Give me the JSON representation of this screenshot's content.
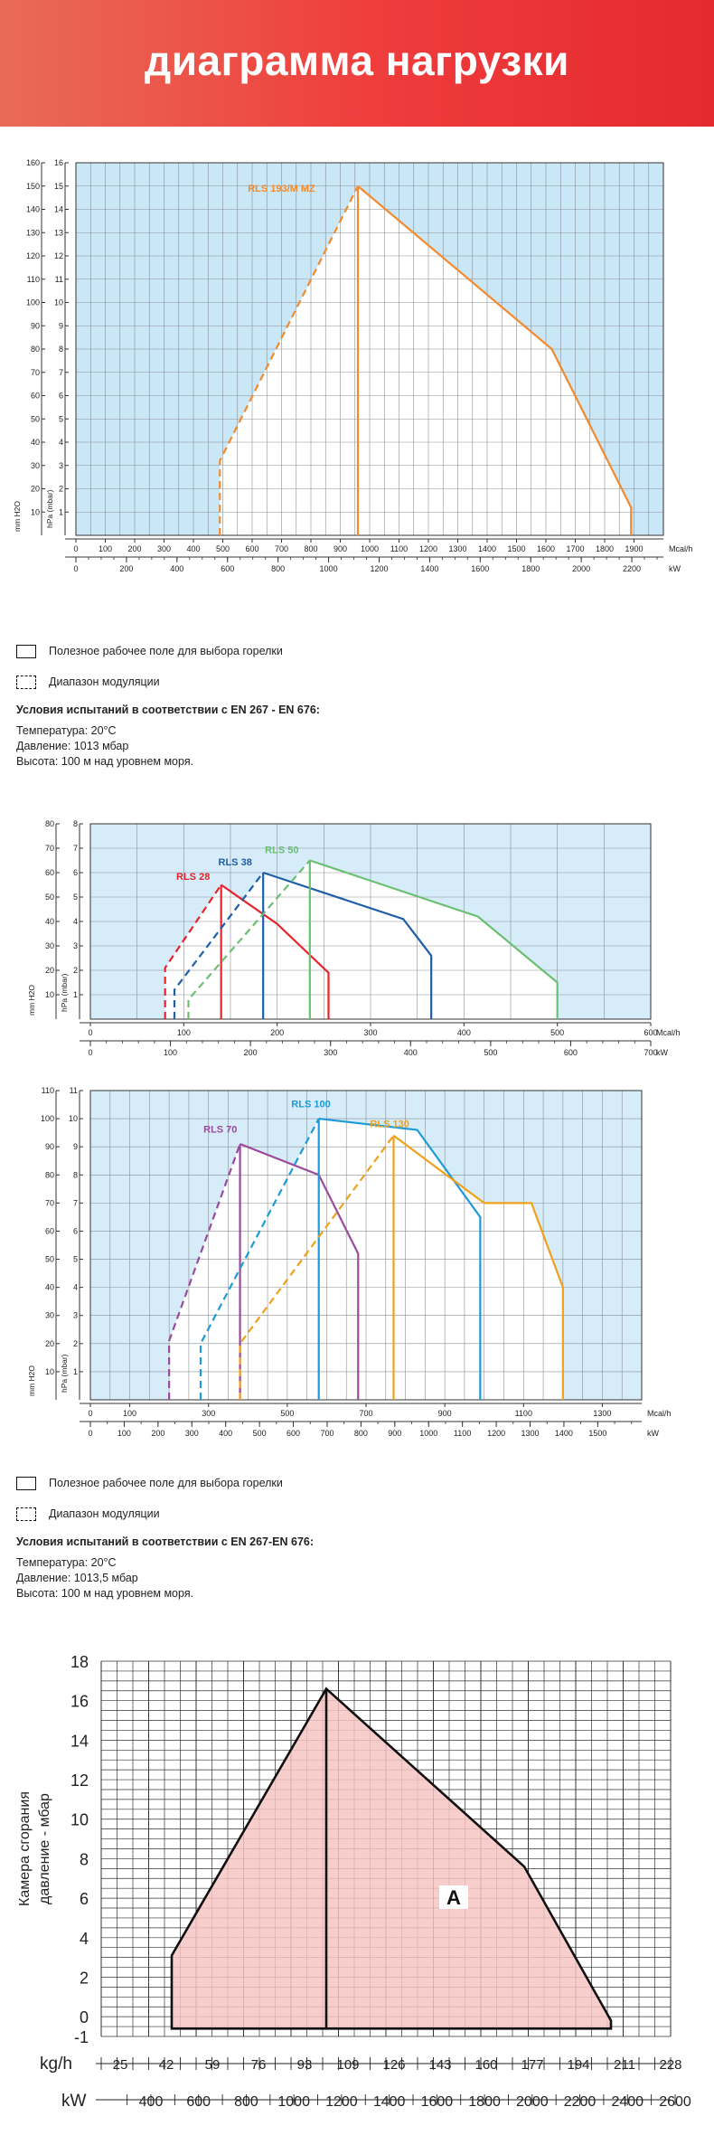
{
  "header": {
    "title": "диаграмма нагрузки"
  },
  "legend1": {
    "field_label": "Полезное рабочее поле для выбора горелки",
    "modulation_label": "Диапазон модуляции",
    "conditions_title": "Условия испытаний в соответствии с EN 267 - EN 676:",
    "temperature": "Температура: 20°С",
    "pressure": "Давление: 1013 мбар",
    "altitude": "Высота: 100 м над уровнем моря."
  },
  "legend2": {
    "field_label": "Полезное рабочее поле для выбора горелки",
    "modulation_label": "Диапазон модуляции",
    "conditions_title": "Условия испытаний в соответствии с EN 267-EN 676:",
    "temperature": "Температура: 20°С",
    "pressure": "Давление: 1013,5 мбар",
    "altitude": "Высота: 100 м над уровнем моря."
  },
  "chart_data": [
    {
      "type": "area",
      "x_units": [
        "Mcal/h",
        "kW"
      ],
      "y_units": [
        "mm H2O",
        "hPa (mbar)"
      ],
      "y_label_mm": "mm H2O",
      "y_label_hpa": "hPa (mbar)",
      "x_label_mcal": "Mcal/h",
      "x_label_kw": "kW",
      "xlim": [
        0,
        2000
      ],
      "ylim": [
        0,
        16
      ],
      "x_ticks": [
        0,
        100,
        200,
        300,
        400,
        500,
        600,
        700,
        800,
        900,
        1000,
        1100,
        1200,
        1300,
        1400,
        1500,
        1600,
        1700,
        1800,
        1900
      ],
      "kw_ticks": [
        0,
        200,
        400,
        600,
        800,
        1000,
        1200,
        1400,
        1600,
        1800,
        2000,
        2200
      ],
      "y_ticks": [
        1,
        2,
        3,
        4,
        5,
        6,
        7,
        8,
        9,
        10,
        11,
        12,
        13,
        14,
        15,
        16
      ],
      "mm_ticks": [
        10,
        20,
        30,
        40,
        50,
        60,
        70,
        80,
        90,
        100,
        110,
        120,
        130,
        140,
        150,
        160
      ],
      "bg_color": "#c9e7f6",
      "series": [
        {
          "name": "RLS 193/M MZ",
          "color": "#f28a2e",
          "min_x": 490,
          "min_y": 3.2,
          "peak_x": 960,
          "peak_y": 15,
          "inner_x": 960,
          "outline": [
            [
              960,
              15
            ],
            [
              1620,
              8
            ],
            [
              1890,
              1.2
            ],
            [
              1890,
              0
            ]
          ]
        }
      ]
    },
    {
      "type": "area",
      "x_units": [
        "Mcal/h",
        "kW"
      ],
      "y_units": [
        "mm H2O",
        "hPa (mbar)"
      ],
      "y_label_mm": "mm H2O",
      "y_label_hpa": "hPa (mbar)",
      "x_label_mcal": "Mcal/h",
      "x_label_kw": "kW",
      "xlim": [
        0,
        600
      ],
      "ylim": [
        0,
        8
      ],
      "x_ticks": [
        0,
        100,
        200,
        300,
        400,
        500,
        600
      ],
      "kw_ticks": [
        0,
        100,
        200,
        300,
        400,
        500,
        600,
        700
      ],
      "y_ticks": [
        1,
        2,
        3,
        4,
        5,
        6,
        7,
        8
      ],
      "mm_ticks": [
        10,
        20,
        30,
        40,
        50,
        60,
        70,
        80
      ],
      "bg_color": "#d6ecf9",
      "series": [
        {
          "name": "RLS 28",
          "color": "#e6242b",
          "min_x": 80,
          "min_y": 2.1,
          "peak_x": 140,
          "peak_y": 5.5,
          "inner_x": 140,
          "label_x": 110,
          "label_y": 5.7,
          "outline": [
            [
              140,
              5.5
            ],
            [
              200,
              3.9
            ],
            [
              255,
              1.9
            ],
            [
              255,
              0
            ]
          ]
        },
        {
          "name": "RLS 38",
          "color": "#1f5fa8",
          "min_x": 90,
          "min_y": 1.2,
          "peak_x": 185,
          "peak_y": 6.0,
          "inner_x": 185,
          "label_x": 155,
          "label_y": 6.3,
          "outline": [
            [
              185,
              6.0
            ],
            [
              335,
              4.1
            ],
            [
              365,
              2.6
            ],
            [
              365,
              0
            ]
          ]
        },
        {
          "name": "RLS 50",
          "color": "#6bbf72",
          "min_x": 105,
          "min_y": 0.8,
          "peak_x": 235,
          "peak_y": 6.5,
          "inner_x": 235,
          "label_x": 205,
          "label_y": 6.8,
          "outline": [
            [
              235,
              6.5
            ],
            [
              415,
              4.2
            ],
            [
              500,
              1.5
            ],
            [
              500,
              0
            ]
          ]
        }
      ]
    },
    {
      "type": "area",
      "x_units": [
        "Mcal/h",
        "kW"
      ],
      "y_units": [
        "mm H2O",
        "hPa (mbar)"
      ],
      "y_label_mm": "mm H2O",
      "y_label_hpa": "hPa (mbar)",
      "x_label_mcal": "Mcal/h",
      "x_label_kw": "kW",
      "xlim": [
        0,
        1400
      ],
      "ylim": [
        0,
        11
      ],
      "x_ticks": [
        0,
        100,
        300,
        500,
        700,
        900,
        1100,
        1300
      ],
      "kw_ticks": [
        0,
        100,
        200,
        300,
        400,
        500,
        600,
        700,
        800,
        900,
        1000,
        1100,
        1200,
        1300,
        1400,
        1500
      ],
      "y_ticks": [
        1,
        2,
        3,
        4,
        5,
        6,
        7,
        8,
        9,
        10,
        11
      ],
      "mm_ticks": [
        10,
        20,
        30,
        40,
        50,
        60,
        70,
        80,
        90,
        100,
        110
      ],
      "bg_color": "#d6ecf9",
      "series": [
        {
          "name": "RLS 70",
          "color": "#9b4a9c",
          "min_x": 200,
          "min_y": 2.1,
          "peak_x": 380,
          "peak_y": 9.1,
          "inner_x": 380,
          "label_x": 330,
          "label_y": 9.5,
          "outline": [
            [
              380,
              9.1
            ],
            [
              580,
              8.0
            ],
            [
              680,
              5.2
            ],
            [
              680,
              0
            ]
          ]
        },
        {
          "name": "RLS 100",
          "color": "#1d9bd7",
          "min_x": 280,
          "min_y": 2.0,
          "peak_x": 580,
          "peak_y": 10.0,
          "inner_x": 580,
          "label_x": 560,
          "label_y": 10.4,
          "outline": [
            [
              580,
              10.0
            ],
            [
              830,
              9.6
            ],
            [
              990,
              6.5
            ],
            [
              990,
              0
            ]
          ]
        },
        {
          "name": "RLS 130",
          "color": "#f0a11c",
          "min_x": 380,
          "min_y": 2.0,
          "peak_x": 770,
          "peak_y": 9.4,
          "inner_x": 770,
          "label_x": 760,
          "label_y": 9.7,
          "outline": [
            [
              770,
              9.4
            ],
            [
              1000,
              7.0
            ],
            [
              1120,
              7.0
            ],
            [
              1200,
              4.0
            ],
            [
              1200,
              0
            ]
          ]
        }
      ]
    },
    {
      "type": "area",
      "ylabel_line1": "Камера сгорания",
      "ylabel_line2": "давление - мбар",
      "x_label_kgh": "kg/h",
      "x_label_kw": "kW",
      "xlim": [
        18,
        228
      ],
      "ylim": [
        -1,
        18
      ],
      "y_ticks": [
        -1,
        0,
        2,
        4,
        6,
        8,
        10,
        12,
        14,
        16,
        18
      ],
      "kgh_ticks": [
        25,
        42,
        59,
        76,
        93,
        109,
        126,
        143,
        160,
        177,
        194,
        211,
        228
      ],
      "kw_ticks": [
        400,
        600,
        800,
        1000,
        1200,
        1400,
        1600,
        1800,
        2000,
        2200,
        2400,
        2600
      ],
      "fill_color": "#f6c5c3",
      "area_label": "A",
      "outline": [
        [
          44,
          -0.6
        ],
        [
          44,
          3.1
        ],
        [
          101,
          16.6
        ],
        [
          174,
          7.6
        ],
        [
          206,
          -0.2
        ],
        [
          206,
          -0.6
        ]
      ],
      "inner_x": 101
    }
  ]
}
